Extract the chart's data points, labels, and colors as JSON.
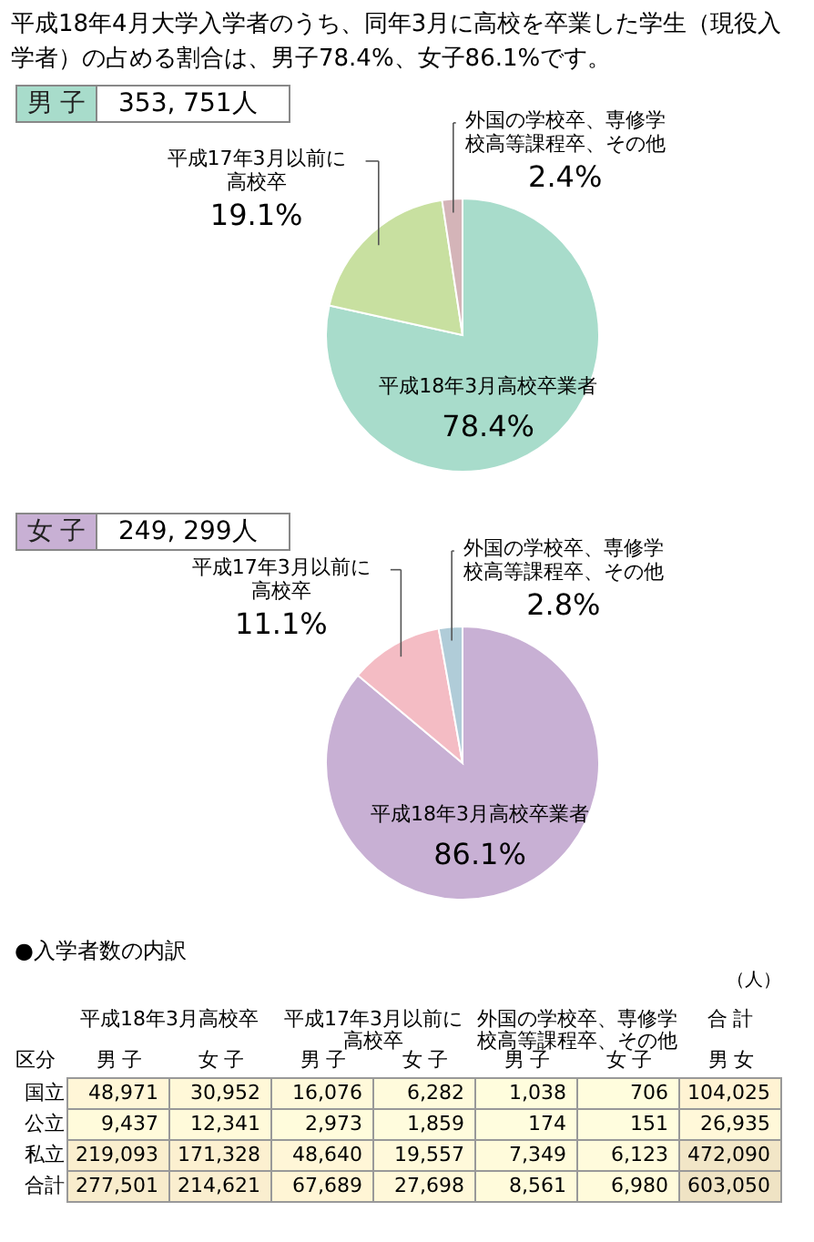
{
  "chart_data": [
    {
      "type": "pie",
      "title": "男 子",
      "subtitle": "353, 751人",
      "annotations": [
        "平成18年4月大学入学者のうち、同年3月に高校を卒業した学生（現役入学者）の占める割合は、男子78.4%、女子86.1%です。"
      ],
      "categories": [
        "平成18年3月高校卒業者",
        "平成17年3月以前に高校卒",
        "外国の学校卒、専修学校高等課程卒、その他"
      ],
      "values": [
        78.4,
        19.1,
        2.4
      ],
      "value_labels": [
        "78.4%",
        "19.1%",
        "2.4%"
      ],
      "colors": [
        "#a8dccb",
        "#c8e0a0",
        "#d4b4b8"
      ]
    },
    {
      "type": "pie",
      "title": "女 子",
      "subtitle": "249, 299人",
      "categories": [
        "平成18年3月高校卒業者",
        "平成17年3月以前に高校卒",
        "外国の学校卒、専修学校高等課程卒、その他"
      ],
      "values": [
        86.1,
        11.1,
        2.8
      ],
      "value_labels": [
        "86.1%",
        "11.1%",
        "2.8%"
      ],
      "colors": [
        "#c8b0d4",
        "#f4bcc4",
        "#b0ccd8"
      ]
    },
    {
      "type": "heatmap",
      "title": "●入学者数の内訳",
      "ylabel": "区分",
      "annotations": [
        "（人）",
        "平成18年3月高校卒",
        "平成17年3月以前に高校卒",
        "外国の学校卒、専修学校高等課程卒、その他",
        "合 計"
      ],
      "categories": [
        "男 子",
        "女 子",
        "男 子",
        "女 子",
        "男 子",
        "女 子",
        "男 女"
      ],
      "y_categories": [
        "国立",
        "公立",
        "私立",
        "合計"
      ],
      "cells": [
        [
          48971,
          30952,
          16076,
          6282,
          1038,
          706,
          104025
        ],
        [
          9437,
          12341,
          2973,
          1859,
          174,
          151,
          26935
        ],
        [
          219093,
          171328,
          48640,
          19557,
          7349,
          6123,
          472090
        ],
        [
          277501,
          214621,
          67689,
          27698,
          8561,
          6980,
          603050
        ]
      ],
      "cell_labels": [
        [
          "48,971",
          "30,952",
          "16,076",
          "6,282",
          "1,038",
          "706",
          "104,025"
        ],
        [
          "9,437",
          "12,341",
          "2,973",
          "1,859",
          "174",
          "151",
          "26,935"
        ],
        [
          "219,093",
          "171,328",
          "48,640",
          "19,557",
          "7,349",
          "6,123",
          "472,090"
        ],
        [
          "277,501",
          "214,621",
          "67,689",
          "27,698",
          "8,561",
          "6,980",
          "603,050"
        ]
      ]
    }
  ]
}
